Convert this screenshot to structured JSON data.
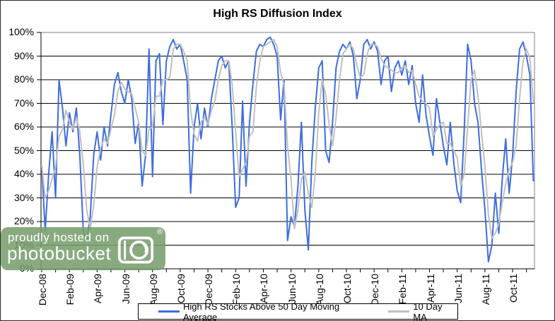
{
  "watermark": {
    "line1": "proudly hosted on",
    "line2": "photobucket",
    "registered": "®",
    "bg_color": "#779E6C"
  },
  "chart_data": {
    "type": "line",
    "title": "High RS Diffusion Index",
    "xlabel": "",
    "ylabel": "",
    "ylim": [
      0,
      100
    ],
    "y_tick_step": 10,
    "y_tick_suffix": "%",
    "grid": "horizontal",
    "legend_position": "bottom",
    "background": "#FFFFFF",
    "axis_color": "#000000",
    "grid_color": "#000000",
    "border_color": "#808080",
    "x_tick_labels": [
      "Dec-08",
      "Feb-09",
      "Apr-09",
      "Jun-09",
      "Aug-09",
      "Oct-09",
      "Dec-09",
      "Feb-10",
      "Apr-10",
      "Jun-10",
      "Aug-10",
      "Oct-10",
      "Dec-10",
      "Feb-11",
      "Apr-11",
      "Jun-11",
      "Aug-11",
      "Oct-11"
    ],
    "x_tick_months": [
      0,
      2,
      4,
      6,
      8,
      10,
      12,
      14,
      16,
      18,
      20,
      22,
      24,
      26,
      28,
      30,
      32,
      34
    ],
    "x_minor_tick_every_months": 1,
    "x_start_month": 0,
    "x_step_months": 0.25,
    "series": [
      {
        "name": "High RS Stocks Above 50 Day Moving Average",
        "color": "#3D6DE0",
        "width": 2,
        "values": [
          44,
          16,
          40,
          58,
          30,
          80,
          68,
          52,
          66,
          58,
          68,
          48,
          16,
          12,
          22,
          48,
          58,
          46,
          60,
          52,
          65,
          78,
          83,
          75,
          70,
          80,
          72,
          53,
          62,
          35,
          48,
          93,
          39,
          88,
          91,
          61,
          88,
          94,
          97,
          93,
          95,
          88,
          80,
          32,
          60,
          70,
          55,
          68,
          60,
          72,
          80,
          88,
          90,
          85,
          88,
          60,
          26,
          30,
          71,
          35,
          62,
          78,
          92,
          95,
          94,
          97,
          98,
          95,
          90,
          63,
          80,
          12,
          22,
          18,
          35,
          62,
          25,
          8,
          45,
          68,
          85,
          88,
          50,
          45,
          62,
          85,
          92,
          95,
          93,
          96,
          90,
          72,
          80,
          95,
          97,
          93,
          96,
          92,
          78,
          88,
          90,
          75,
          85,
          88,
          82,
          88,
          78,
          86,
          70,
          62,
          82,
          65,
          56,
          48,
          72,
          62,
          52,
          44,
          62,
          45,
          33,
          28,
          58,
          95,
          88,
          70,
          62,
          42,
          25,
          3,
          10,
          32,
          15,
          38,
          55,
          32,
          48,
          75,
          93,
          96,
          90,
          82,
          37
        ]
      },
      {
        "name": "10 Day MA",
        "color": "#C0C0C0",
        "width": 2,
        "values": [
          44,
          30,
          33,
          38,
          43,
          56,
          59,
          67,
          62,
          59,
          64,
          58,
          44,
          25,
          17,
          27,
          43,
          51,
          55,
          53,
          59,
          65,
          75,
          79,
          76,
          75,
          74,
          68,
          62,
          50,
          48,
          59,
          60,
          73,
          73,
          80,
          80,
          81,
          93,
          95,
          95,
          92,
          88,
          67,
          57,
          54,
          62,
          64,
          61,
          67,
          71,
          80,
          86,
          88,
          88,
          78,
          58,
          39,
          42,
          45,
          56,
          58,
          77,
          88,
          94,
          95,
          96,
          97,
          94,
          83,
          78,
          52,
          38,
          17,
          25,
          38,
          41,
          32,
          26,
          40,
          66,
          80,
          74,
          61,
          52,
          64,
          80,
          91,
          93,
          95,
          93,
          86,
          81,
          82,
          91,
          95,
          95,
          94,
          89,
          86,
          85,
          84,
          83,
          83,
          85,
          86,
          83,
          84,
          78,
          73,
          71,
          70,
          68,
          56,
          59,
          61,
          62,
          53,
          53,
          50,
          47,
          35,
          40,
          60,
          80,
          84,
          73,
          58,
          43,
          23,
          13,
          15,
          19,
          28,
          36,
          42,
          45,
          52,
          72,
          88,
          93,
          89,
          70
        ]
      }
    ]
  }
}
